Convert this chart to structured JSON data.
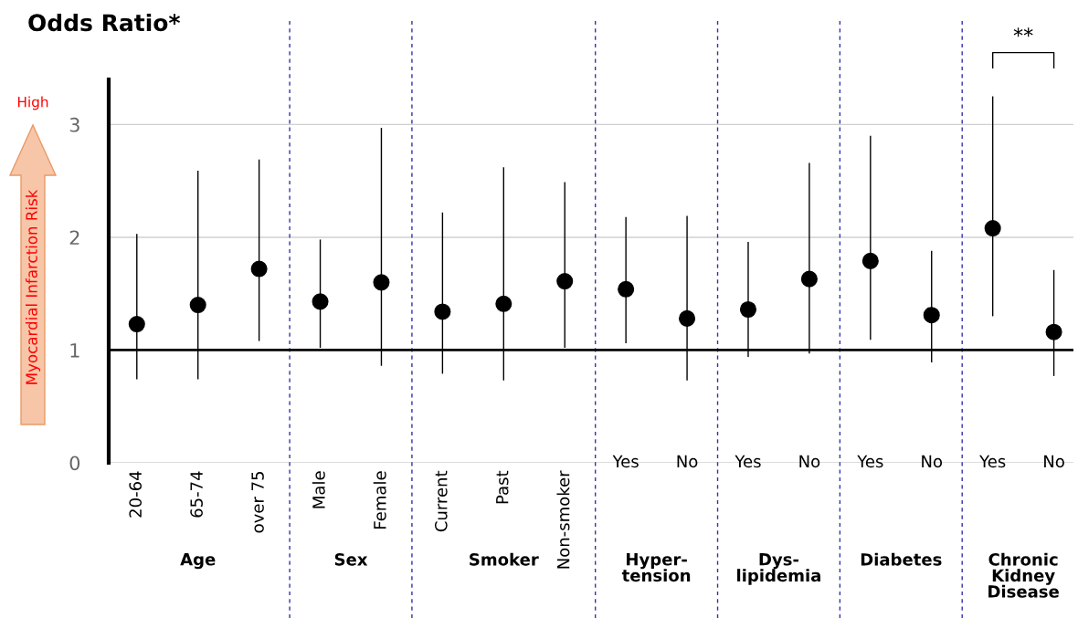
{
  "chart_data": {
    "type": "scatter",
    "title": "Odds Ratio*",
    "ylabel": "Myocardial Infarction Risk",
    "categories": [
      "20-64",
      "65-74",
      "over 75",
      "Male",
      "Female",
      "Current",
      "Past",
      "Non-smoker",
      "Yes",
      "No",
      "Yes",
      "No",
      "Yes",
      "No",
      "Yes",
      "No"
    ],
    "values": [
      1.23,
      1.4,
      1.72,
      1.43,
      1.6,
      1.34,
      1.41,
      1.61,
      1.54,
      1.28,
      1.36,
      1.63,
      1.79,
      1.31,
      2.08,
      1.16
    ],
    "errors": [
      [
        0.74,
        2.03
      ],
      [
        0.74,
        2.59
      ],
      [
        1.08,
        2.69
      ],
      [
        1.02,
        1.98
      ],
      [
        0.86,
        2.97
      ],
      [
        0.79,
        2.22
      ],
      [
        0.73,
        2.62
      ],
      [
        1.02,
        2.49
      ],
      [
        1.06,
        2.18
      ],
      [
        0.73,
        2.19
      ],
      [
        0.94,
        1.96
      ],
      [
        0.97,
        2.66
      ],
      [
        1.09,
        2.9
      ],
      [
        0.89,
        1.88
      ],
      [
        1.3,
        3.25
      ],
      [
        0.77,
        1.71
      ]
    ],
    "color": "#000000",
    "marker": "circle",
    "ylim": [
      0,
      3.4
    ],
    "yticks": [
      0,
      1,
      2,
      3
    ],
    "grid": "y",
    "ref_lines": [
      {
        "axis": "y",
        "value": 1,
        "color": "#000000",
        "line_style": "solid"
      }
    ],
    "annotations": [
      "Age",
      "Sex",
      "Smoker",
      "Hyper-\ntension",
      "Dys-\nlipidemia",
      "Diabetes",
      "Chronic\nKidney\nDisease",
      "**",
      "High"
    ]
  }
}
